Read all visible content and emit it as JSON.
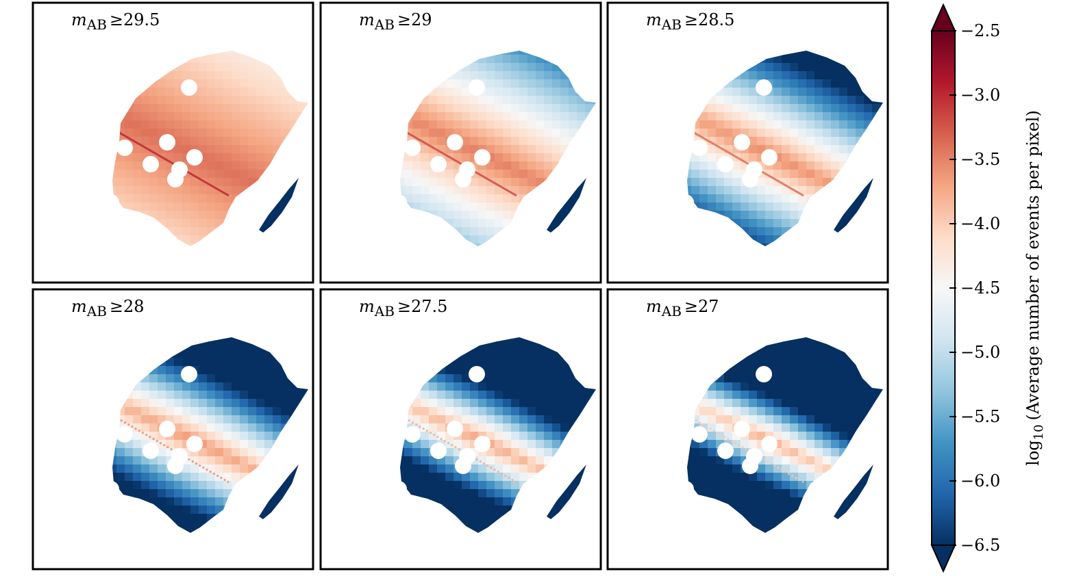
{
  "chart_data": {
    "type": "heatmap",
    "title": "",
    "panel_label_prefix": "m",
    "panel_label_subscript": "AB",
    "panel_label_operator": "≥",
    "panels": [
      {
        "threshold": "29.5",
        "level": 0.0
      },
      {
        "threshold": "29",
        "level": 0.2
      },
      {
        "threshold": "28.5",
        "level": 0.4
      },
      {
        "threshold": "28",
        "level": 0.6
      },
      {
        "threshold": "27.5",
        "level": 0.8
      },
      {
        "threshold": "27",
        "level": 1.0
      }
    ],
    "colorbar": {
      "label_prefix": "log",
      "label_subscript": "10",
      "label_text": "(Average number of events per pixel)",
      "range": [
        -6.5,
        -2.5
      ],
      "ticks": [
        "−2.5",
        "−3.0",
        "−3.5",
        "−4.0",
        "−4.5",
        "−5.0",
        "−5.5",
        "−6.0",
        "−6.5"
      ],
      "tick_values": [
        -2.5,
        -3.0,
        -3.5,
        -4.0,
        -4.5,
        -5.0,
        -5.5,
        -6.0,
        -6.5
      ],
      "extend": "both",
      "colormap": "RdBu_r"
    },
    "colors": {
      "max": "#67001f",
      "high": "#b2182b",
      "mid_high": "#d6604d",
      "light_red": "#f4a582",
      "pale_red": "#fddbc7",
      "neutral": "#f7f7f7",
      "pale_blue": "#d1e5f0",
      "light_blue": "#92c5de",
      "mid_blue": "#4393c3",
      "blue": "#2166ac",
      "min": "#053061"
    }
  }
}
